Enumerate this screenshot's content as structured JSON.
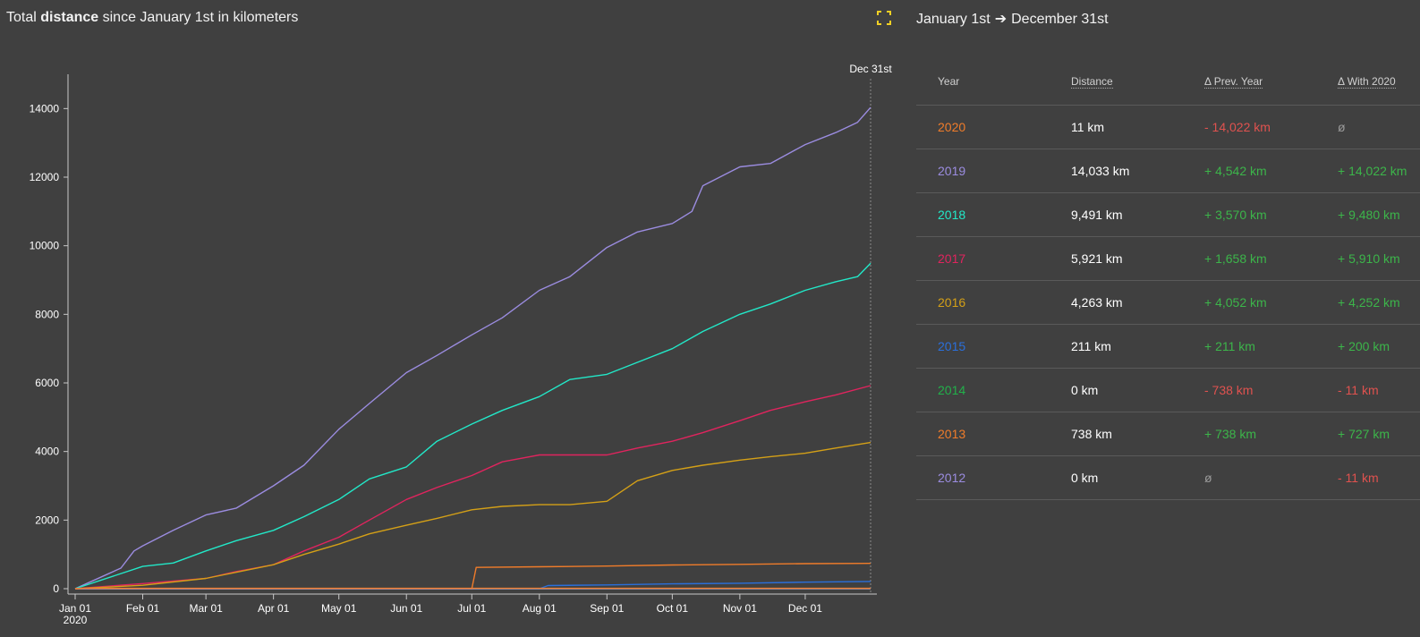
{
  "header": {
    "title_pre": "Total ",
    "title_bold": "distance",
    "title_post": " since January 1st in kilometers",
    "range_start": "January 1st",
    "range_arrow": "➔",
    "range_end": "December 31st"
  },
  "chart_data": {
    "type": "line",
    "ylim": [
      0,
      15000
    ],
    "yticks": [
      "0",
      "2000",
      "4000",
      "6000",
      "8000",
      "10000",
      "12000",
      "14000"
    ],
    "xticks": [
      "Jan 01",
      "Feb 01",
      "Mar 01",
      "Apr 01",
      "May 01",
      "Jun 01",
      "Jul 01",
      "Aug 01",
      "Sep 01",
      "Oct 01",
      "Nov 01",
      "Dec 01"
    ],
    "xticks_year": "2020",
    "marker_label": "Dec 31st",
    "grid": false,
    "series": [
      {
        "name": "2019",
        "color": "#9b8ce0",
        "x": [
          "Jan 01",
          "Jan 15",
          "Jan 22",
          "Jan 28",
          "Feb 01",
          "Feb 15",
          "Mar 01",
          "Mar 15",
          "Apr 01",
          "Apr 15",
          "May 01",
          "May 15",
          "Jun 01",
          "Jun 15",
          "Jul 01",
          "Jul 15",
          "Aug 01",
          "Aug 15",
          "Sep 01",
          "Sep 15",
          "Oct 01",
          "Oct 10",
          "Oct 15",
          "Nov 01",
          "Nov 15",
          "Dec 01",
          "Dec 15",
          "Dec 25",
          "Dec 31"
        ],
        "y": [
          0,
          400,
          600,
          1100,
          1250,
          1700,
          2150,
          2350,
          3000,
          3600,
          4650,
          5400,
          6300,
          6800,
          7400,
          7900,
          8700,
          9100,
          9950,
          10400,
          10650,
          11000,
          11750,
          12300,
          12400,
          12950,
          13300,
          13600,
          14033
        ]
      },
      {
        "name": "2018",
        "color": "#22e8c8",
        "x": [
          "Jan 01",
          "Feb 01",
          "Feb 15",
          "Mar 01",
          "Mar 15",
          "Apr 01",
          "Apr 15",
          "May 01",
          "May 15",
          "Jun 01",
          "Jun 15",
          "Jul 01",
          "Jul 15",
          "Aug 01",
          "Aug 15",
          "Sep 01",
          "Sep 15",
          "Oct 01",
          "Oct 15",
          "Nov 01",
          "Nov 15",
          "Dec 01",
          "Dec 15",
          "Dec 25",
          "Dec 31"
        ],
        "y": [
          0,
          650,
          750,
          1100,
          1400,
          1700,
          2100,
          2600,
          3200,
          3550,
          4300,
          4800,
          5200,
          5600,
          6100,
          6250,
          6600,
          7000,
          7500,
          8000,
          8300,
          8700,
          8950,
          9100,
          9491
        ]
      },
      {
        "name": "2017",
        "color": "#e0245e",
        "x": [
          "Jan 01",
          "Feb 01",
          "Mar 01",
          "Mar 15",
          "Apr 01",
          "Apr 15",
          "May 01",
          "May 15",
          "Jun 01",
          "Jun 15",
          "Jul 01",
          "Jul 15",
          "Aug 01",
          "Aug 15",
          "Sep 01",
          "Sep 15",
          "Oct 01",
          "Oct 15",
          "Nov 01",
          "Nov 15",
          "Dec 01",
          "Dec 15",
          "Dec 31"
        ],
        "y": [
          0,
          150,
          300,
          500,
          700,
          1100,
          1500,
          2000,
          2600,
          2950,
          3300,
          3700,
          3900,
          3900,
          3900,
          4100,
          4300,
          4550,
          4900,
          5200,
          5450,
          5650,
          5921
        ]
      },
      {
        "name": "2016",
        "color": "#d4a017",
        "x": [
          "Jan 01",
          "Feb 01",
          "Mar 01",
          "Apr 01",
          "Apr 15",
          "May 01",
          "May 15",
          "Jun 01",
          "Jun 15",
          "Jul 01",
          "Jul 15",
          "Aug 01",
          "Aug 15",
          "Sep 01",
          "Sep 15",
          "Oct 01",
          "Oct 15",
          "Nov 01",
          "Nov 15",
          "Dec 01",
          "Dec 15",
          "Dec 31"
        ],
        "y": [
          0,
          100,
          300,
          700,
          1000,
          1300,
          1600,
          1850,
          2050,
          2300,
          2400,
          2450,
          2450,
          2550,
          3150,
          3450,
          3600,
          3750,
          3850,
          3950,
          4100,
          4263
        ]
      },
      {
        "name": "2015",
        "color": "#2a6fdb",
        "x": [
          "Jan 01",
          "Jul 01",
          "Aug 01",
          "Aug 05",
          "Sep 01",
          "Oct 01",
          "Nov 01",
          "Dec 01",
          "Dec 31"
        ],
        "y": [
          0,
          0,
          0,
          90,
          110,
          140,
          160,
          190,
          211
        ]
      },
      {
        "name": "2014",
        "color": "#22b04a",
        "x": [
          "Jan 01",
          "Dec 31"
        ],
        "y": [
          0,
          0
        ]
      },
      {
        "name": "2013",
        "color": "#f07c2a",
        "x": [
          "Jan 01",
          "Jul 01",
          "Jul 03",
          "Aug 01",
          "Sep 01",
          "Oct 01",
          "Nov 01",
          "Dec 01",
          "Dec 31"
        ],
        "y": [
          0,
          0,
          620,
          640,
          660,
          690,
          710,
          730,
          738
        ]
      },
      {
        "name": "2012",
        "color": "#9b8ce0",
        "x": [
          "Jan 01",
          "Dec 31"
        ],
        "y": [
          0,
          0
        ]
      },
      {
        "name": "2020",
        "color": "#f07c2a",
        "x": [
          "Jan 01",
          "Jan 05",
          "Dec 31"
        ],
        "y": [
          0,
          11,
          11
        ]
      }
    ]
  },
  "table": {
    "headers": {
      "year": "Year",
      "distance": "Distance",
      "prev": "Δ Prev. Year",
      "with": "Δ With 2020"
    },
    "rows": [
      {
        "year": "2020",
        "year_color": "#f07c2a",
        "distance": "11 km",
        "prev": "- 14,022 km",
        "prev_kind": "neg",
        "with": "ø",
        "with_kind": "none"
      },
      {
        "year": "2019",
        "year_color": "#9b8ce0",
        "distance": "14,033 km",
        "prev": "+ 4,542 km",
        "prev_kind": "pos",
        "with": "+ 14,022 km",
        "with_kind": "pos"
      },
      {
        "year": "2018",
        "year_color": "#22e8c8",
        "distance": "9,491 km",
        "prev": "+ 3,570 km",
        "prev_kind": "pos",
        "with": "+ 9,480 km",
        "with_kind": "pos"
      },
      {
        "year": "2017",
        "year_color": "#e0245e",
        "distance": "5,921 km",
        "prev": "+ 1,658 km",
        "prev_kind": "pos",
        "with": "+ 5,910 km",
        "with_kind": "pos"
      },
      {
        "year": "2016",
        "year_color": "#d4a017",
        "distance": "4,263 km",
        "prev": "+ 4,052 km",
        "prev_kind": "pos",
        "with": "+ 4,252 km",
        "with_kind": "pos"
      },
      {
        "year": "2015",
        "year_color": "#2a6fdb",
        "distance": "211 km",
        "prev": "+ 211 km",
        "prev_kind": "pos",
        "with": "+ 200 km",
        "with_kind": "pos"
      },
      {
        "year": "2014",
        "year_color": "#22b04a",
        "distance": "0 km",
        "prev": "- 738 km",
        "prev_kind": "neg",
        "with": "- 11 km",
        "with_kind": "neg"
      },
      {
        "year": "2013",
        "year_color": "#f07c2a",
        "distance": "738 km",
        "prev": "+ 738 km",
        "prev_kind": "pos",
        "with": "+ 727 km",
        "with_kind": "pos"
      },
      {
        "year": "2012",
        "year_color": "#9b8ce0",
        "distance": "0 km",
        "prev": "ø",
        "prev_kind": "none",
        "with": "- 11 km",
        "with_kind": "neg"
      }
    ]
  },
  "colors": {
    "background": "#404040",
    "axis": "#c8c8c8",
    "positive": "#3cb54a",
    "negative": "#e0524f",
    "expand_icon": "#f2d024"
  }
}
